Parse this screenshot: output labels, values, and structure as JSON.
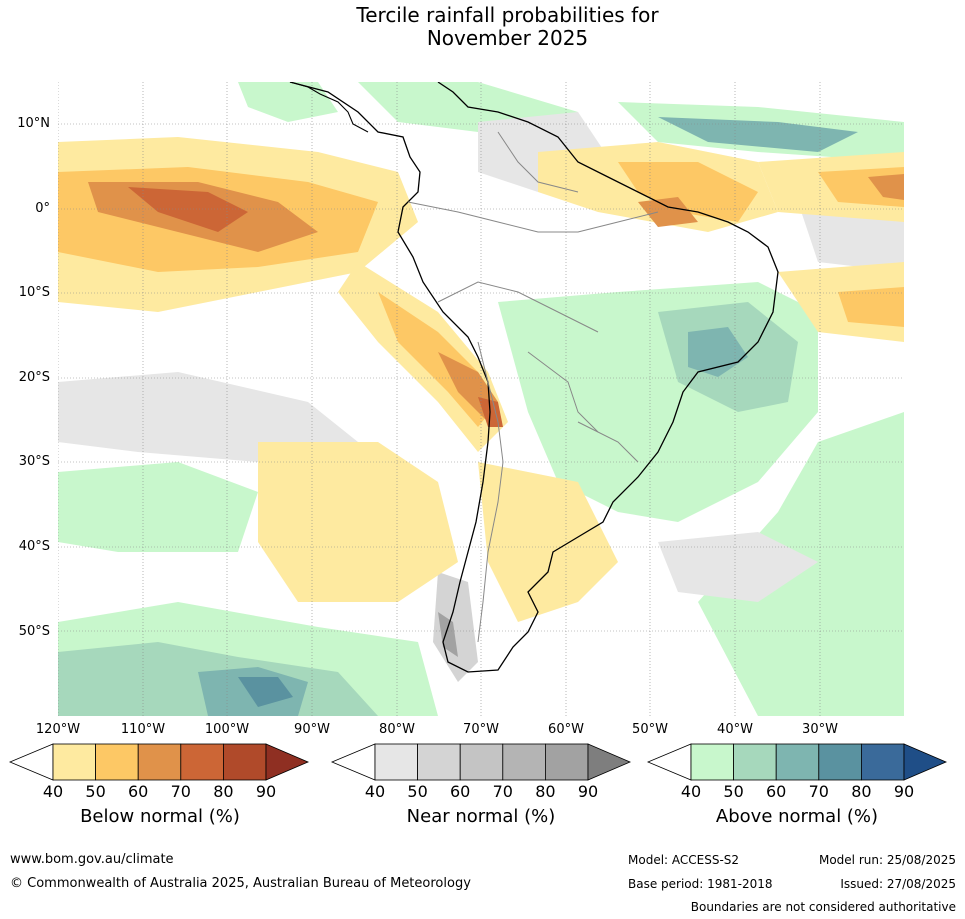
{
  "title_line1": "Tercile rainfall probabilities for",
  "title_line2": "November 2025",
  "lat_labels": [
    "10°N",
    "0°",
    "10°S",
    "20°S",
    "30°S",
    "40°S",
    "50°S"
  ],
  "lon_labels": [
    "120°W",
    "110°W",
    "100°W",
    "90°W",
    "80°W",
    "70°W",
    "60°W",
    "50°W",
    "40°W",
    "30°W"
  ],
  "colorbars": [
    {
      "name": "Below normal (%)",
      "ticks": [
        "40",
        "50",
        "60",
        "70",
        "80",
        "90"
      ],
      "colors": [
        "#ffffff",
        "#feeaa0",
        "#fdc865",
        "#e0924a",
        "#cc6636",
        "#b04a2a",
        "#8f2f22"
      ]
    },
    {
      "name": "Near normal (%)",
      "ticks": [
        "40",
        "50",
        "60",
        "70",
        "80",
        "90"
      ],
      "colors": [
        "#ffffff",
        "#e6e6e6",
        "#d4d4d4",
        "#c4c4c4",
        "#b4b4b4",
        "#a2a2a2",
        "#7e7e7e"
      ]
    },
    {
      "name": "Above normal (%)",
      "ticks": [
        "40",
        "50",
        "60",
        "70",
        "80",
        "90"
      ],
      "colors": [
        "#ffffff",
        "#c8f7cc",
        "#a6d8bc",
        "#7eb5b0",
        "#5a92a0",
        "#3a6a9a",
        "#1f4e87"
      ]
    }
  ],
  "map_colors": {
    "below": [
      "#feeaa0",
      "#fdc865",
      "#e0924a",
      "#cc6636"
    ],
    "near": [
      "#e6e6e6",
      "#d4d4d4",
      "#a2a2a2"
    ],
    "above": [
      "#c8f7cc",
      "#a6d8bc",
      "#7eb5b0",
      "#5a92a0",
      "#3a6a9a"
    ]
  },
  "footer": {
    "website": "www.bom.gov.au/climate",
    "copyright": "© Commonwealth of Australia 2025, Australian Bureau of Meteorology",
    "model": "Model: ACCESS-S2",
    "base_period": "Base period: 1981-2018",
    "model_run": "Model run: 25/08/2025",
    "issued": "Issued: 27/08/2025",
    "disclaimer": "Boundaries are not considered authoritative"
  }
}
